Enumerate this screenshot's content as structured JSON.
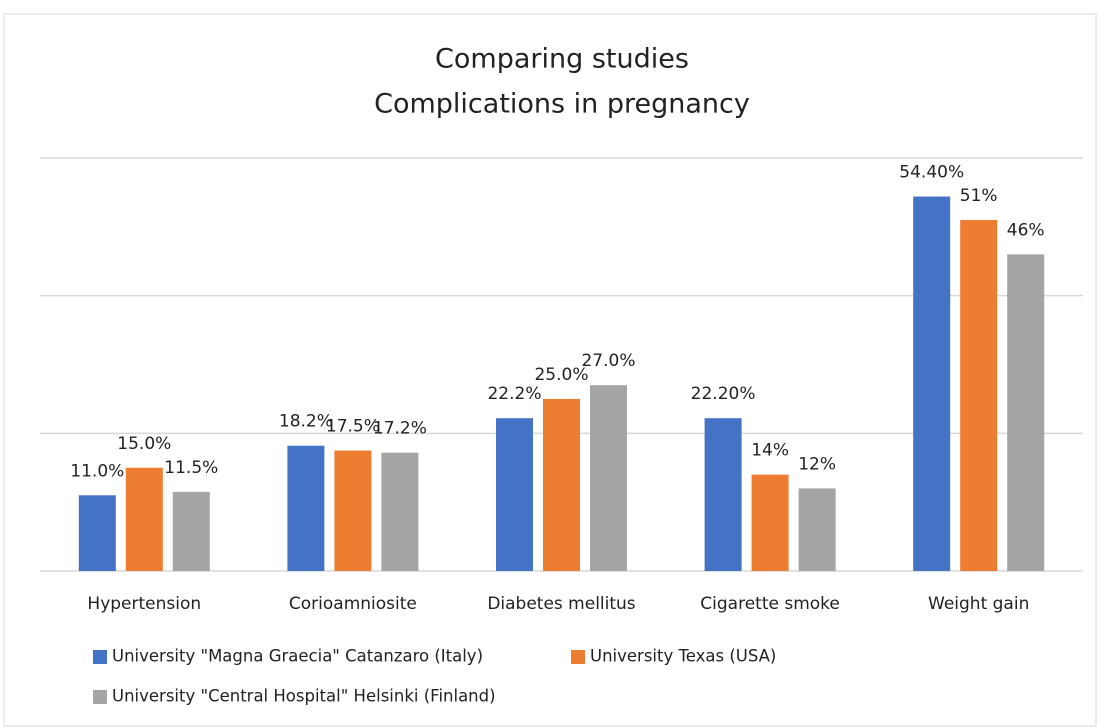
{
  "chart_data": {
    "type": "bar",
    "title": "Comparing studies",
    "subtitle": "Complications in pregnancy",
    "categories": [
      "Hypertension",
      "Corioamniosite",
      "Diabetes mellitus",
      "Cigarette smoke",
      "Weight gain"
    ],
    "series": [
      {
        "name": "University \"Magna Graecia\" Catanzaro (Italy)",
        "color": "#4472c4",
        "values": [
          11.0,
          18.2,
          22.2,
          22.2,
          54.4
        ],
        "value_labels": [
          "11.0%",
          "18.2%",
          "22.2%",
          "22.20%",
          "54.40%"
        ]
      },
      {
        "name": "University Texas (USA)",
        "color": "#ed7d31",
        "values": [
          15.0,
          17.5,
          25.0,
          14,
          51
        ],
        "value_labels": [
          "15.0%",
          "17.5%",
          "25.0%",
          "14%",
          "51%"
        ]
      },
      {
        "name": "University \"Central Hospital\" Helsinki (Finland)",
        "color": "#a5a5a5",
        "values": [
          11.5,
          17.2,
          27.0,
          12,
          46
        ],
        "value_labels": [
          "11.5%",
          "17.2%",
          "27.0%",
          "12%",
          "46%"
        ]
      }
    ],
    "ylim": [
      0,
      60
    ],
    "yticks": [
      0,
      20,
      40,
      60
    ],
    "grid": true
  }
}
